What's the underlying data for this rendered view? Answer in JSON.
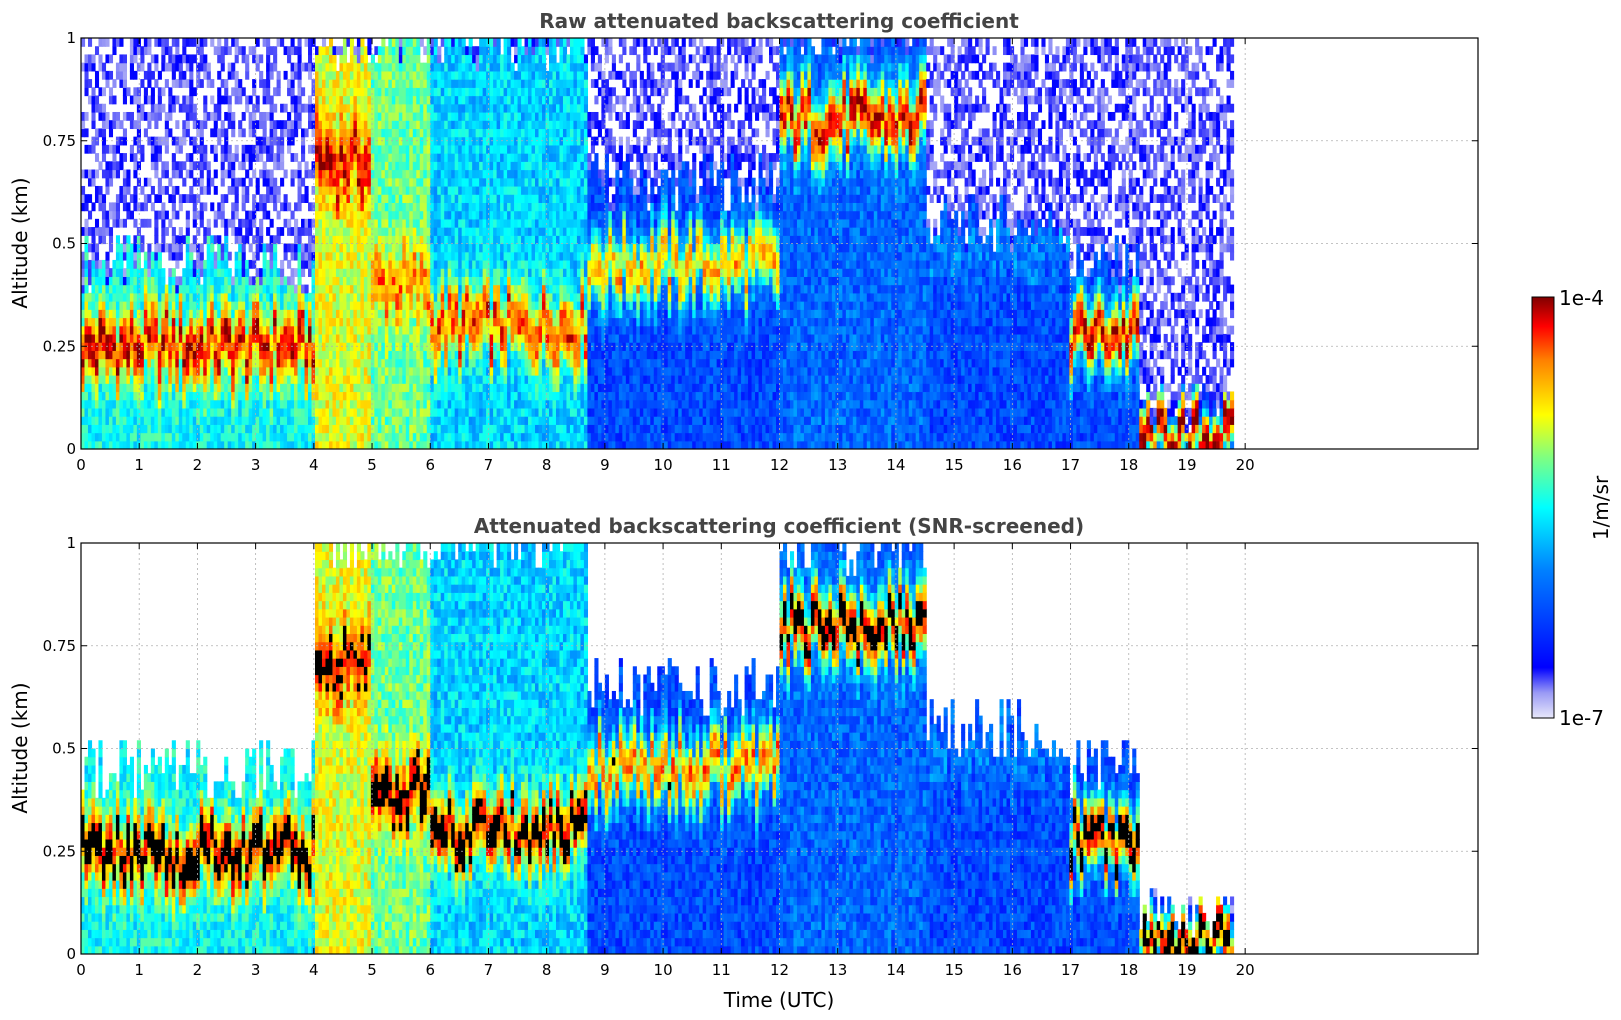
{
  "chart_data": [
    {
      "type": "heatmap",
      "title": "Raw attenuated backscattering coefficient",
      "xlabel": "",
      "ylabel": "Altitude (km)",
      "xlim": [
        0,
        24
      ],
      "ylim": [
        0,
        1
      ],
      "x_ticks": [
        "0",
        "1",
        "2",
        "3",
        "4",
        "5",
        "6",
        "7",
        "8",
        "9",
        "10",
        "11",
        "12",
        "13",
        "14",
        "15",
        "16",
        "17",
        "18",
        "19",
        "20"
      ],
      "y_ticks": [
        "0",
        "0.25",
        "0.5",
        "0.75",
        "1"
      ],
      "grid": true,
      "data_end_time": 19.8,
      "segments": [
        {
          "t0": 0.0,
          "t1": 4.0,
          "base_level": 0.5,
          "layer_top": 0.45,
          "peak_level": 0.95,
          "peak_alt": 0.25
        },
        {
          "t0": 4.0,
          "t1": 5.0,
          "base_level": 0.7,
          "layer_top": 1.0,
          "peak_level": 0.95,
          "peak_alt": 0.7
        },
        {
          "t0": 5.0,
          "t1": 6.0,
          "base_level": 0.6,
          "layer_top": 1.0,
          "peak_level": 0.85,
          "peak_alt": 0.4
        },
        {
          "t0": 6.0,
          "t1": 8.7,
          "base_level": 0.45,
          "layer_top": 1.0,
          "peak_level": 0.9,
          "peak_alt": 0.3
        },
        {
          "t0": 8.7,
          "t1": 12.0,
          "base_level": 0.25,
          "layer_top": 0.65,
          "peak_level": 0.8,
          "peak_alt": 0.45
        },
        {
          "t0": 12.0,
          "t1": 14.5,
          "base_level": 0.3,
          "layer_top": 1.0,
          "peak_level": 0.95,
          "peak_alt": 0.8
        },
        {
          "t0": 14.5,
          "t1": 17.0,
          "base_level": 0.25,
          "layer_top": 0.55,
          "peak_level": 0.35,
          "peak_alt": 0.5
        },
        {
          "t0": 17.0,
          "t1": 18.2,
          "base_level": 0.25,
          "layer_top": 0.45,
          "peak_level": 0.95,
          "peak_alt": 0.28
        },
        {
          "t0": 18.2,
          "t1": 19.8,
          "base_level": 0.05,
          "layer_top": 0.1,
          "peak_level": 1.0,
          "peak_alt": 0.03
        }
      ]
    },
    {
      "type": "heatmap",
      "title": "Attenuated backscattering coefficient (SNR-screened)",
      "xlabel": "Time (UTC)",
      "ylabel": "Altitude (km)",
      "xlim": [
        0,
        24
      ],
      "ylim": [
        0,
        1
      ],
      "x_ticks": [
        "0",
        "1",
        "2",
        "3",
        "4",
        "5",
        "6",
        "7",
        "8",
        "9",
        "10",
        "11",
        "12",
        "13",
        "14",
        "15",
        "16",
        "17",
        "18",
        "19",
        "20"
      ],
      "y_ticks": [
        "0",
        "0.25",
        "0.5",
        "0.75",
        "1"
      ],
      "grid": true,
      "data_end_time": 19.8,
      "saturation_color": "#000000",
      "segments": [
        {
          "t0": 0.0,
          "t1": 4.0,
          "base_level": 0.5,
          "layer_top": 0.45,
          "peak_level": 1.0,
          "peak_alt": 0.25
        },
        {
          "t0": 4.0,
          "t1": 5.0,
          "base_level": 0.7,
          "layer_top": 1.0,
          "peak_level": 0.95,
          "peak_alt": 0.7
        },
        {
          "t0": 5.0,
          "t1": 6.0,
          "base_level": 0.6,
          "layer_top": 1.0,
          "peak_level": 1.0,
          "peak_alt": 0.4
        },
        {
          "t0": 6.0,
          "t1": 8.7,
          "base_level": 0.45,
          "layer_top": 1.0,
          "peak_level": 1.0,
          "peak_alt": 0.3
        },
        {
          "t0": 8.7,
          "t1": 12.0,
          "base_level": 0.25,
          "layer_top": 0.65,
          "peak_level": 0.85,
          "peak_alt": 0.45
        },
        {
          "t0": 12.0,
          "t1": 14.5,
          "base_level": 0.3,
          "layer_top": 1.0,
          "peak_level": 1.0,
          "peak_alt": 0.8
        },
        {
          "t0": 14.5,
          "t1": 17.0,
          "base_level": 0.25,
          "layer_top": 0.55,
          "peak_level": 0.35,
          "peak_alt": 0.5
        },
        {
          "t0": 17.0,
          "t1": 18.2,
          "base_level": 0.25,
          "layer_top": 0.45,
          "peak_level": 1.0,
          "peak_alt": 0.28
        },
        {
          "t0": 18.2,
          "t1": 19.8,
          "base_level": 0.05,
          "layer_top": 0.1,
          "peak_level": 1.0,
          "peak_alt": 0.03
        }
      ]
    }
  ],
  "colorbar": {
    "max_label": "1e-4",
    "min_label": "1e-7",
    "unit_label": "1/m/sr",
    "colormap": "jet",
    "low_color": "#e8e8fa",
    "high_color": "#800000"
  }
}
